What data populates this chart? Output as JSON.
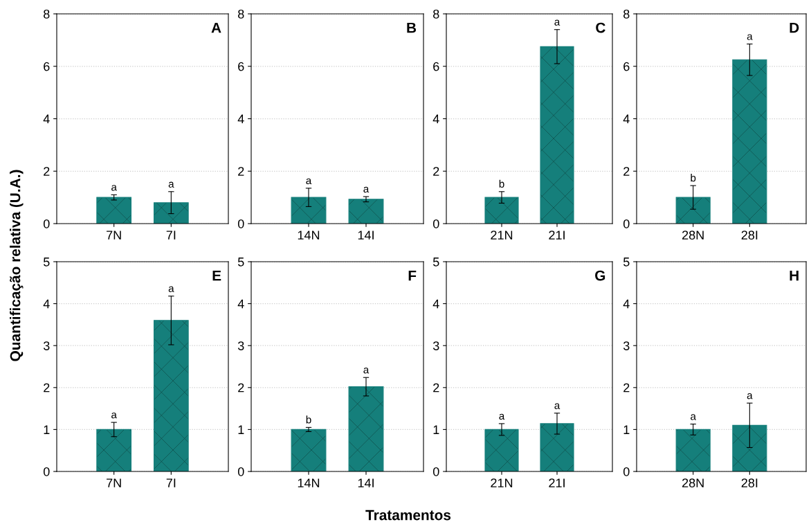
{
  "chart_data": [
    {
      "type": "bar",
      "categories": [
        "7N",
        "7I"
      ],
      "values": [
        1.0,
        0.8
      ],
      "errors": [
        0.1,
        0.42
      ],
      "color": "#157f7b",
      "ylim": [
        0,
        8
      ],
      "yticks": [
        0,
        2,
        4,
        6,
        8
      ],
      "grid": "y",
      "ylabel": "Quantificação relativa (U.A.)",
      "annotations": [
        "A",
        {
          "text": "a",
          "x": "7N",
          "y": 1.1
        },
        {
          "text": "a",
          "x": "7I",
          "y": 1.22
        }
      ]
    },
    {
      "type": "bar",
      "categories": [
        "14N",
        "14I"
      ],
      "values": [
        1.0,
        0.93
      ],
      "errors": [
        0.35,
        0.1
      ],
      "color": "#157f7b",
      "ylim": [
        0,
        8
      ],
      "yticks": [
        0,
        2,
        4,
        6,
        8
      ],
      "grid": "y",
      "annotations": [
        "B",
        {
          "text": "a",
          "x": "14N",
          "y": 1.35
        },
        {
          "text": "a",
          "x": "14I",
          "y": 1.03
        }
      ]
    },
    {
      "type": "bar",
      "categories": [
        "21N",
        "21I"
      ],
      "values": [
        1.0,
        6.75
      ],
      "errors": [
        0.22,
        0.65
      ],
      "color": "#157f7b",
      "ylim": [
        0,
        8
      ],
      "yticks": [
        0,
        2,
        4,
        6,
        8
      ],
      "grid": "y",
      "annotations": [
        "C",
        {
          "text": "b",
          "x": "21N",
          "y": 1.22
        },
        {
          "text": "a",
          "x": "21I",
          "y": 7.4
        }
      ]
    },
    {
      "type": "bar",
      "categories": [
        "28N",
        "28I"
      ],
      "values": [
        1.0,
        6.25
      ],
      "errors": [
        0.45,
        0.6
      ],
      "color": "#157f7b",
      "ylim": [
        0,
        8
      ],
      "yticks": [
        0,
        2,
        4,
        6,
        8
      ],
      "grid": "y",
      "annotations": [
        "D",
        {
          "text": "b",
          "x": "28N",
          "y": 1.45
        },
        {
          "text": "a",
          "x": "28I",
          "y": 6.85
        }
      ]
    },
    {
      "type": "bar",
      "categories": [
        "7N",
        "7I"
      ],
      "values": [
        1.0,
        3.6
      ],
      "errors": [
        0.17,
        0.58
      ],
      "color": "#157f7b",
      "ylim": [
        0,
        5
      ],
      "yticks": [
        0,
        1,
        2,
        3,
        4,
        5
      ],
      "grid": "y",
      "annotations": [
        "E",
        {
          "text": "a",
          "x": "7N",
          "y": 1.17
        },
        {
          "text": "a",
          "x": "7I",
          "y": 4.18
        }
      ]
    },
    {
      "type": "bar",
      "categories": [
        "14N",
        "14I"
      ],
      "values": [
        1.0,
        2.02
      ],
      "errors": [
        0.05,
        0.22
      ],
      "color": "#157f7b",
      "ylim": [
        0,
        5
      ],
      "yticks": [
        0,
        1,
        2,
        3,
        4,
        5
      ],
      "grid": "y",
      "xlabel": "Tratamentos",
      "annotations": [
        "F",
        {
          "text": "b",
          "x": "14N",
          "y": 1.05
        },
        {
          "text": "a",
          "x": "14I",
          "y": 2.24
        }
      ]
    },
    {
      "type": "bar",
      "categories": [
        "21N",
        "21I"
      ],
      "values": [
        1.0,
        1.14
      ],
      "errors": [
        0.14,
        0.25
      ],
      "color": "#157f7b",
      "ylim": [
        0,
        5
      ],
      "yticks": [
        0,
        1,
        2,
        3,
        4,
        5
      ],
      "grid": "y",
      "annotations": [
        "G",
        {
          "text": "a",
          "x": "21N",
          "y": 1.14
        },
        {
          "text": "a",
          "x": "21I",
          "y": 1.39
        }
      ]
    },
    {
      "type": "bar",
      "categories": [
        "28N",
        "28I"
      ],
      "values": [
        1.0,
        1.1
      ],
      "errors": [
        0.13,
        0.53
      ],
      "color": "#157f7b",
      "ylim": [
        0,
        5
      ],
      "yticks": [
        0,
        1,
        2,
        3,
        4,
        5
      ],
      "grid": "y",
      "annotations": [
        "H",
        {
          "text": "a",
          "x": "28N",
          "y": 1.13
        },
        {
          "text": "a",
          "x": "28I",
          "y": 1.63
        }
      ]
    }
  ]
}
